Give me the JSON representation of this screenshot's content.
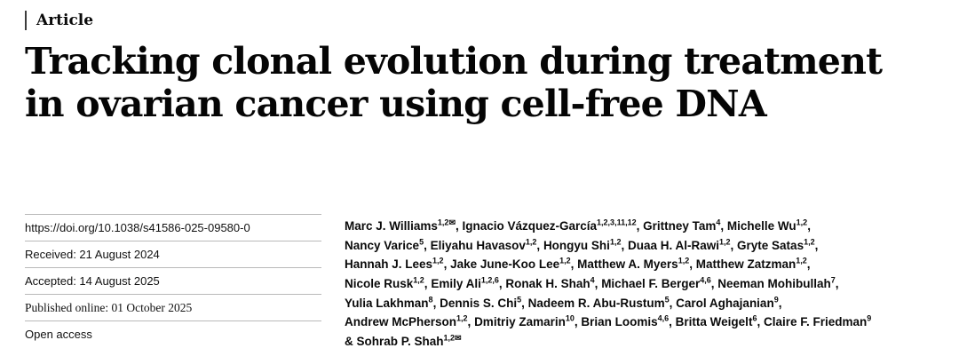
{
  "article": {
    "kicker": "Article"
  },
  "title": {
    "lines": [
      "Tracking clonal evolution during treatment",
      "in ovarian cancer using cell-free DNA"
    ]
  },
  "metadata": {
    "rows": [
      {
        "kind": "doi-link",
        "label": "https://doi.org/10.1038/s41586-025-09580-0",
        "link": true
      },
      {
        "kind": "received-date",
        "label": "Received: 21 August 2024"
      },
      {
        "kind": "accepted-date",
        "label": "Accepted: 14 August 2025"
      },
      {
        "kind": "published-date",
        "label": "Published online: 01 October 2025",
        "serif": true
      },
      {
        "kind": "open-access-label",
        "label": "Open access"
      }
    ]
  },
  "authors": {
    "mail_glyph": "✉",
    "lines": [
      [
        {
          "name": "Marc J. Williams",
          "sup": "1,2",
          "mail": true,
          "post": ", "
        },
        {
          "name": "Ignacio Vázquez-García",
          "sup": "1,2,3,11,12",
          "post": ", "
        },
        {
          "name": "Grittney Tam",
          "sup": "4",
          "post": ", "
        },
        {
          "name": "Michelle Wu",
          "sup": "1,2",
          "post": ","
        }
      ],
      [
        {
          "name": "Nancy Varice",
          "sup": "5",
          "post": ", "
        },
        {
          "name": "Eliyahu Havasov",
          "sup": "1,2",
          "post": ", "
        },
        {
          "name": "Hongyu Shi",
          "sup": "1,2",
          "post": ", "
        },
        {
          "name": "Duaa H. Al-Rawi",
          "sup": "1,2",
          "post": ", "
        },
        {
          "name": "Gryte Satas",
          "sup": "1,2",
          "post": ","
        }
      ],
      [
        {
          "name": "Hannah J. Lees",
          "sup": "1,2",
          "post": ", "
        },
        {
          "name": "Jake June-Koo Lee",
          "sup": "1,2",
          "post": ", "
        },
        {
          "name": "Matthew A. Myers",
          "sup": "1,2",
          "post": ", "
        },
        {
          "name": "Matthew Zatzman",
          "sup": "1,2",
          "post": ","
        }
      ],
      [
        {
          "name": "Nicole Rusk",
          "sup": "1,2",
          "post": ", "
        },
        {
          "name": "Emily Ali",
          "sup": "1,2,6",
          "post": ", "
        },
        {
          "name": "Ronak H. Shah",
          "sup": "4",
          "post": ", "
        },
        {
          "name": "Michael F. Berger",
          "sup": "4,6",
          "post": ", "
        },
        {
          "name": "Neeman Mohibullah",
          "sup": "7",
          "post": ","
        }
      ],
      [
        {
          "name": "Yulia Lakhman",
          "sup": "8",
          "post": ", "
        },
        {
          "name": "Dennis S. Chi",
          "sup": "5",
          "post": ", "
        },
        {
          "name": "Nadeem R. Abu-Rustum",
          "sup": "5",
          "post": ", "
        },
        {
          "name": "Carol Aghajanian",
          "sup": "9",
          "post": ","
        }
      ],
      [
        {
          "name": "Andrew McPherson",
          "sup": "1,2",
          "post": ", "
        },
        {
          "name": "Dmitriy Zamarin",
          "sup": "10",
          "post": ", "
        },
        {
          "name": "Brian Loomis",
          "sup": "4,6",
          "post": ", "
        },
        {
          "name": "Britta Weigelt",
          "sup": "6",
          "post": ", "
        },
        {
          "name": "Claire F. Friedman",
          "sup": "9",
          "post": ""
        }
      ],
      [
        {
          "pre": "& ",
          "name": "Sohrab P. Shah",
          "sup": "1,2",
          "mail": true,
          "post": ""
        }
      ]
    ]
  }
}
